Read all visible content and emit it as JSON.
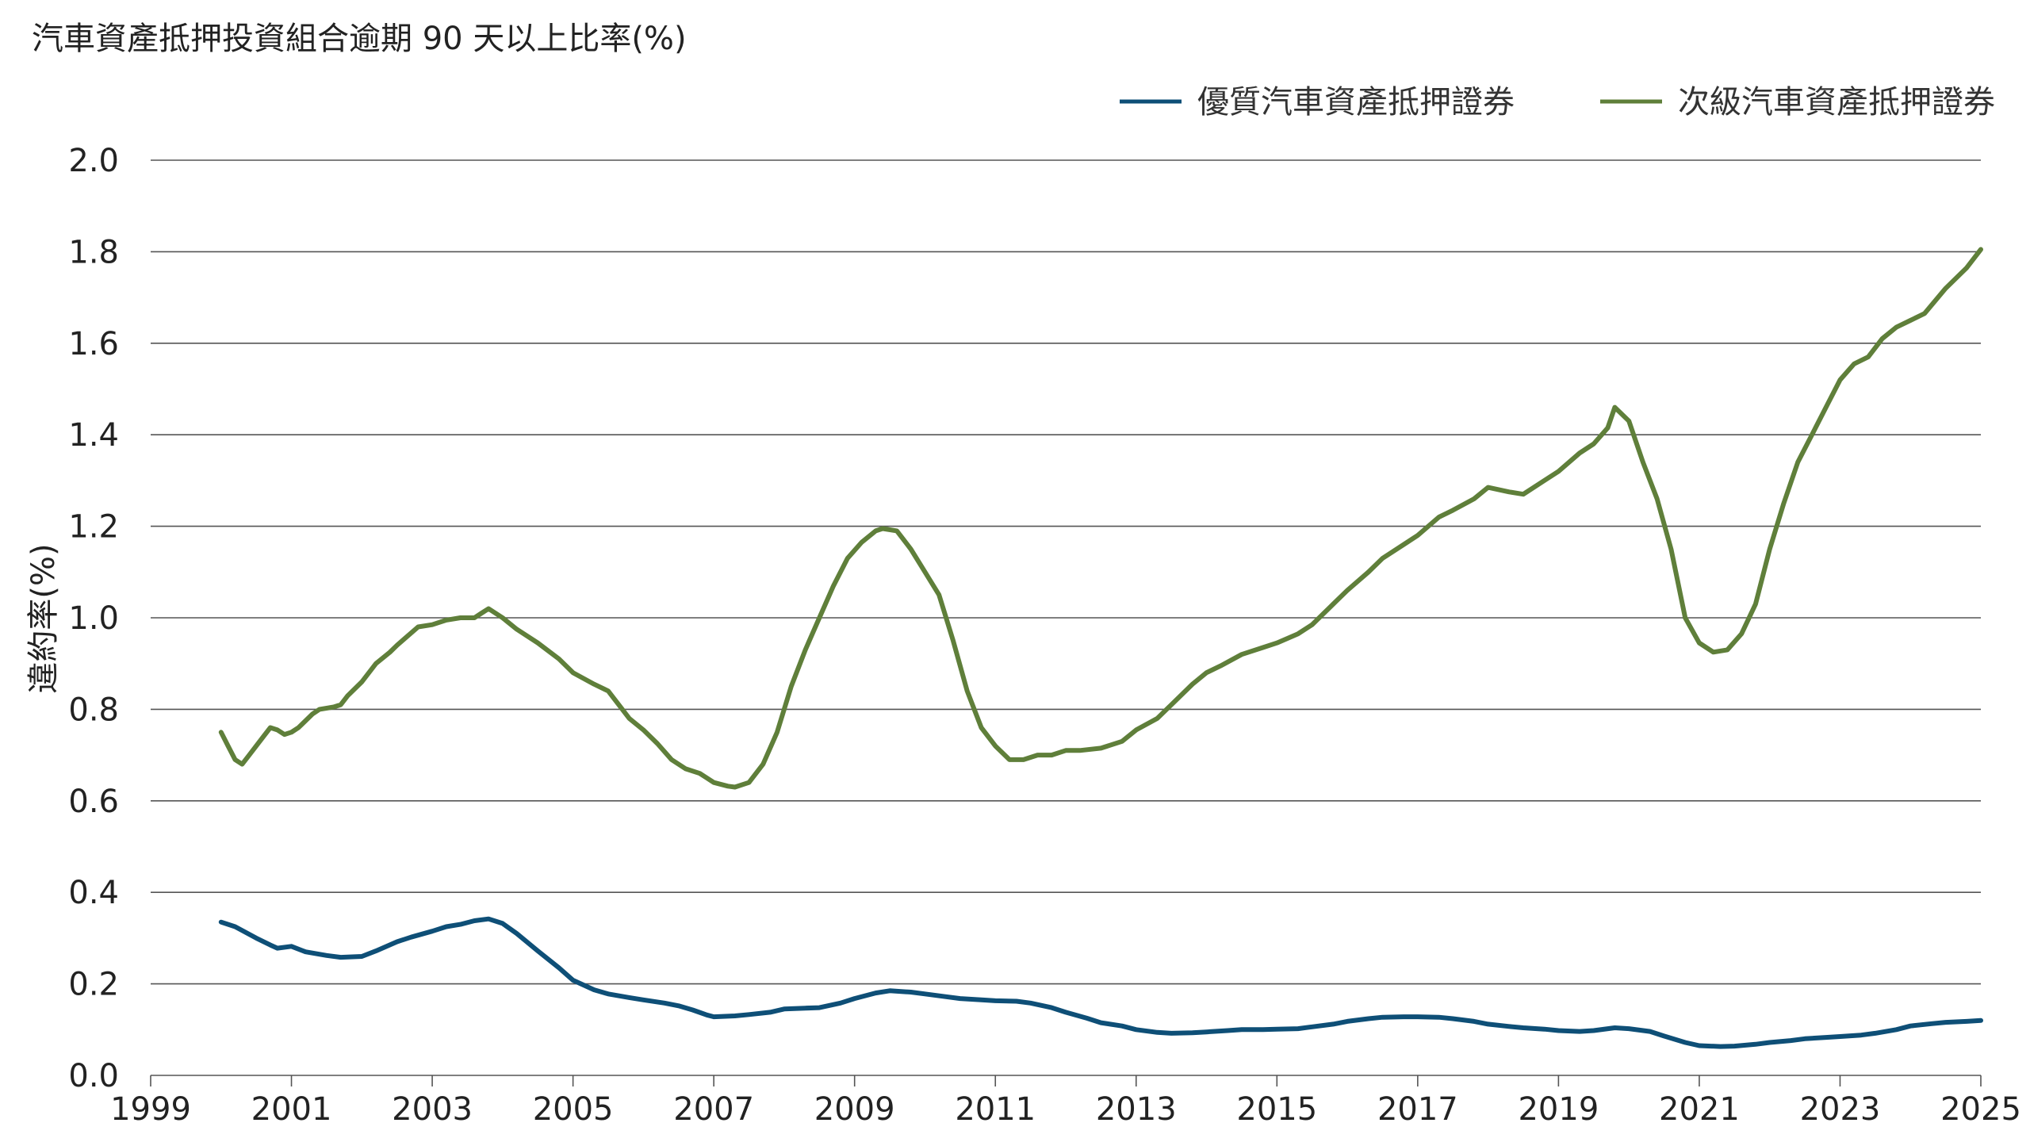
{
  "chart_data": {
    "type": "line",
    "title": "汽車資產抵押投資組合逾期 90 天以上比率(%)",
    "ylabel": "違約率(%)",
    "xlabel": "",
    "xlim": [
      1999,
      2025
    ],
    "ylim": [
      0,
      2.0
    ],
    "x_ticks": [
      "1999",
      "2001",
      "2003",
      "2005",
      "2007",
      "2009",
      "2011",
      "2013",
      "2015",
      "2017",
      "2019",
      "2021",
      "2023",
      "2025"
    ],
    "y_ticks": [
      "0.0",
      "0.2",
      "0.4",
      "0.6",
      "0.8",
      "1.0",
      "1.2",
      "1.4",
      "1.6",
      "1.8",
      "2.0"
    ],
    "grid": true,
    "legend_position": "top-right",
    "series": [
      {
        "name": "優質汽車資產抵押證券",
        "color": "#0e4f77",
        "x": [
          2000.0,
          2000.2,
          2000.5,
          2000.7,
          2000.8,
          2001.0,
          2001.2,
          2001.5,
          2001.7,
          2002.0,
          2002.2,
          2002.5,
          2002.7,
          2003.0,
          2003.2,
          2003.4,
          2003.6,
          2003.8,
          2004.0,
          2004.2,
          2004.5,
          2004.8,
          2005.0,
          2005.3,
          2005.5,
          2005.8,
          2006.0,
          2006.3,
          2006.5,
          2006.7,
          2006.9,
          2007.0,
          2007.3,
          2007.5,
          2007.8,
          2008.0,
          2008.3,
          2008.5,
          2008.8,
          2009.0,
          2009.3,
          2009.5,
          2009.8,
          2010.0,
          2010.3,
          2010.5,
          2010.8,
          2011.0,
          2011.3,
          2011.5,
          2011.8,
          2012.0,
          2012.3,
          2012.5,
          2012.8,
          2013.0,
          2013.3,
          2013.5,
          2013.8,
          2014.0,
          2014.3,
          2014.5,
          2014.8,
          2015.0,
          2015.3,
          2015.5,
          2015.8,
          2016.0,
          2016.3,
          2016.5,
          2016.8,
          2017.0,
          2017.3,
          2017.5,
          2017.8,
          2018.0,
          2018.3,
          2018.5,
          2018.8,
          2019.0,
          2019.3,
          2019.5,
          2019.8,
          2020.0,
          2020.3,
          2020.5,
          2020.8,
          2021.0,
          2021.3,
          2021.5,
          2021.8,
          2022.0,
          2022.3,
          2022.5,
          2022.8,
          2023.0,
          2023.3,
          2023.5,
          2023.8,
          2024.0,
          2024.3,
          2024.5,
          2024.8,
          2025.0
        ],
        "values": [
          0.335,
          0.325,
          0.3,
          0.285,
          0.278,
          0.282,
          0.27,
          0.262,
          0.258,
          0.26,
          0.272,
          0.292,
          0.302,
          0.315,
          0.325,
          0.33,
          0.338,
          0.342,
          0.332,
          0.31,
          0.272,
          0.235,
          0.208,
          0.187,
          0.178,
          0.17,
          0.165,
          0.158,
          0.152,
          0.143,
          0.132,
          0.128,
          0.13,
          0.133,
          0.138,
          0.145,
          0.147,
          0.148,
          0.158,
          0.168,
          0.18,
          0.185,
          0.182,
          0.178,
          0.172,
          0.168,
          0.165,
          0.163,
          0.162,
          0.158,
          0.148,
          0.138,
          0.125,
          0.115,
          0.108,
          0.1,
          0.094,
          0.092,
          0.093,
          0.095,
          0.098,
          0.1,
          0.1,
          0.101,
          0.102,
          0.106,
          0.112,
          0.118,
          0.124,
          0.127,
          0.128,
          0.128,
          0.127,
          0.124,
          0.118,
          0.112,
          0.107,
          0.104,
          0.101,
          0.098,
          0.096,
          0.098,
          0.104,
          0.102,
          0.096,
          0.086,
          0.072,
          0.065,
          0.063,
          0.064,
          0.068,
          0.072,
          0.076,
          0.08,
          0.083,
          0.085,
          0.088,
          0.092,
          0.1,
          0.108,
          0.113,
          0.116,
          0.118,
          0.12
        ]
      },
      {
        "name": "次級汽車資產抵押證券",
        "color": "#5f7f3a",
        "x": [
          2000.0,
          2000.1,
          2000.2,
          2000.3,
          2000.4,
          2000.6,
          2000.7,
          2000.8,
          2000.9,
          2001.0,
          2001.1,
          2001.3,
          2001.4,
          2001.6,
          2001.7,
          2001.8,
          2002.0,
          2002.2,
          2002.4,
          2002.5,
          2002.8,
          2003.0,
          2003.2,
          2003.4,
          2003.6,
          2003.7,
          2003.8,
          2004.0,
          2004.2,
          2004.5,
          2004.8,
          2005.0,
          2005.3,
          2005.5,
          2005.8,
          2006.0,
          2006.2,
          2006.4,
          2006.6,
          2006.8,
          2007.0,
          2007.2,
          2007.3,
          2007.5,
          2007.7,
          2007.9,
          2008.1,
          2008.3,
          2008.5,
          2008.7,
          2008.9,
          2009.1,
          2009.3,
          2009.4,
          2009.6,
          2009.8,
          2010.0,
          2010.2,
          2010.4,
          2010.6,
          2010.8,
          2011.0,
          2011.2,
          2011.4,
          2011.6,
          2011.8,
          2012.0,
          2012.2,
          2012.5,
          2012.8,
          2013.0,
          2013.3,
          2013.5,
          2013.8,
          2014.0,
          2014.2,
          2014.5,
          2014.8,
          2015.0,
          2015.3,
          2015.5,
          2015.8,
          2016.0,
          2016.3,
          2016.5,
          2016.8,
          2017.0,
          2017.3,
          2017.5,
          2017.8,
          2018.0,
          2018.3,
          2018.5,
          2018.8,
          2019.0,
          2019.3,
          2019.5,
          2019.7,
          2019.8,
          2020.0,
          2020.2,
          2020.4,
          2020.6,
          2020.8,
          2021.0,
          2021.2,
          2021.4,
          2021.6,
          2021.8,
          2022.0,
          2022.2,
          2022.4,
          2022.6,
          2022.8,
          2023.0,
          2023.2,
          2023.4,
          2023.6,
          2023.8,
          2024.0,
          2024.2,
          2024.5,
          2024.8,
          2025.0
        ],
        "values": [
          0.75,
          0.72,
          0.69,
          0.68,
          0.7,
          0.74,
          0.76,
          0.755,
          0.745,
          0.75,
          0.76,
          0.79,
          0.8,
          0.805,
          0.81,
          0.83,
          0.86,
          0.9,
          0.925,
          0.94,
          0.98,
          0.985,
          0.995,
          1.0,
          1.0,
          1.01,
          1.02,
          1.0,
          0.975,
          0.945,
          0.91,
          0.88,
          0.855,
          0.84,
          0.78,
          0.755,
          0.725,
          0.69,
          0.67,
          0.66,
          0.64,
          0.632,
          0.63,
          0.64,
          0.68,
          0.75,
          0.85,
          0.93,
          1.0,
          1.07,
          1.13,
          1.165,
          1.19,
          1.195,
          1.19,
          1.15,
          1.1,
          1.05,
          0.95,
          0.84,
          0.76,
          0.72,
          0.69,
          0.69,
          0.7,
          0.7,
          0.71,
          0.71,
          0.715,
          0.73,
          0.755,
          0.78,
          0.81,
          0.855,
          0.88,
          0.895,
          0.92,
          0.935,
          0.945,
          0.965,
          0.985,
          1.03,
          1.06,
          1.1,
          1.13,
          1.16,
          1.18,
          1.22,
          1.235,
          1.26,
          1.285,
          1.275,
          1.27,
          1.3,
          1.32,
          1.36,
          1.38,
          1.415,
          1.46,
          1.43,
          1.34,
          1.26,
          1.15,
          1.0,
          0.945,
          0.925,
          0.93,
          0.965,
          1.03,
          1.15,
          1.25,
          1.34,
          1.4,
          1.46,
          1.52,
          1.555,
          1.57,
          1.61,
          1.635,
          1.65,
          1.665,
          1.72,
          1.765,
          1.805
        ]
      }
    ]
  }
}
